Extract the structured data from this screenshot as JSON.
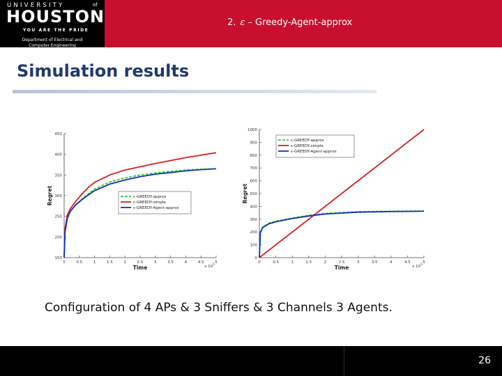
{
  "logo": {
    "university": "UNIVERSITY",
    "of": "of",
    "houston": "HOUSTON",
    "tagline": "YOU ARE THE PRIDE",
    "department_line1": "Department of Electrical and",
    "department_line2": "Computer Engineering"
  },
  "header": {
    "number": "2.",
    "epsilon": "ε",
    "title": "– Greedy-Agent-approx"
  },
  "slide": {
    "title": "Simulation results",
    "caption": "Configuration of 4 APs & 3 Sniffers & 3 Channels 3 Agents.",
    "page_number": "26"
  },
  "colors": {
    "header_red": "#c8102e",
    "title_blue": "#1f3a6e",
    "green": "#2fd02f",
    "red": "#d42020",
    "blue": "#1030c0"
  },
  "chart_data": [
    {
      "type": "line",
      "xlabel": "Time",
      "ylabel": "Regret",
      "x_multiplier_label": "x 10",
      "x_multiplier_exp": "5",
      "xlim": [
        0,
        5
      ],
      "ylim": [
        150,
        450
      ],
      "xticks": [
        "0",
        "0.5",
        "1",
        "1.5",
        "2",
        "2.5",
        "3",
        "3.5",
        "4",
        "4.5",
        "5"
      ],
      "yticks": [
        "150",
        "200",
        "250",
        "300",
        "350",
        "400",
        "450"
      ],
      "legend": "center-right",
      "series": [
        {
          "name": "ε-GREEDY-approx",
          "color": "#2fd02f",
          "dash": true,
          "x": [
            0,
            0.03,
            0.1,
            0.2,
            0.4,
            0.6,
            0.8,
            1,
            1.5,
            2,
            2.5,
            3,
            3.5,
            4,
            4.5,
            5
          ],
          "y": [
            150,
            215,
            245,
            262,
            280,
            293,
            305,
            316,
            333,
            343,
            350,
            355,
            359,
            362,
            364,
            365
          ]
        },
        {
          "name": "ε-GREEDY-simple",
          "color": "#d42020",
          "dash": false,
          "x": [
            0,
            0.03,
            0.1,
            0.2,
            0.4,
            0.6,
            0.8,
            1,
            1.5,
            2,
            2.5,
            3,
            3.5,
            4,
            4.5,
            5
          ],
          "y": [
            150,
            220,
            252,
            268,
            288,
            305,
            320,
            332,
            350,
            362,
            370,
            378,
            385,
            392,
            398,
            404
          ]
        },
        {
          "name": "ε-GREEDY-Agent-approx",
          "color": "#1030c0",
          "dash": false,
          "x": [
            0,
            0.03,
            0.1,
            0.2,
            0.4,
            0.6,
            0.8,
            1,
            1.5,
            2,
            2.5,
            3,
            3.5,
            4,
            4.5,
            5
          ],
          "y": [
            150,
            212,
            244,
            262,
            279,
            291,
            302,
            312,
            328,
            338,
            346,
            352,
            356,
            360,
            363,
            365
          ]
        }
      ]
    },
    {
      "type": "line",
      "xlabel": "Time",
      "ylabel": "Regret",
      "x_multiplier_label": "x 10",
      "x_multiplier_exp": "5",
      "xlim": [
        0,
        5
      ],
      "ylim": [
        0,
        1000
      ],
      "xticks": [
        "0",
        "0.5",
        "1",
        "1.5",
        "2",
        "2.5",
        "3",
        "3.5",
        "4",
        "4.5",
        "5"
      ],
      "yticks": [
        "0",
        "100",
        "200",
        "300",
        "400",
        "500",
        "600",
        "700",
        "800",
        "900",
        "1000"
      ],
      "legend": "top-right",
      "series": [
        {
          "name": "ε-GREEDY-approx",
          "color": "#2fd02f",
          "dash": true,
          "x": [
            0,
            0.03,
            0.1,
            0.3,
            0.5,
            1,
            1.5,
            2,
            3,
            4,
            5
          ],
          "y": [
            0,
            200,
            240,
            270,
            285,
            310,
            330,
            345,
            358,
            362,
            364
          ]
        },
        {
          "name": "ε-GREEDY-simple",
          "color": "#d42020",
          "dash": false,
          "x": [
            0,
            5
          ],
          "y": [
            0,
            1000
          ]
        },
        {
          "name": "ε-GREEDY-Agent-approx",
          "color": "#1030c0",
          "dash": false,
          "x": [
            0,
            0.03,
            0.1,
            0.3,
            0.5,
            1,
            1.5,
            2,
            3,
            4,
            5
          ],
          "y": [
            0,
            195,
            235,
            265,
            280,
            305,
            325,
            340,
            355,
            360,
            362
          ]
        }
      ]
    }
  ]
}
